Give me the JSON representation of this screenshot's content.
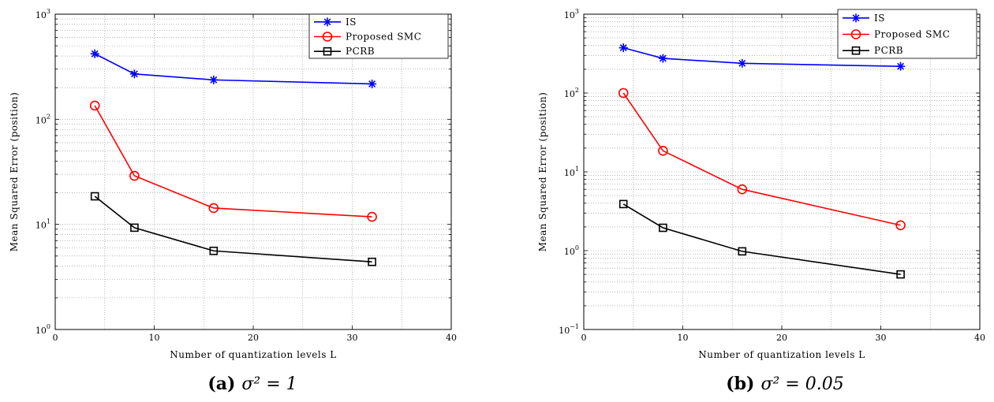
{
  "chart_data": [
    {
      "type": "line",
      "caption_prefix": "(a)",
      "caption_text": "σ² = 1",
      "xlabel": "Number of quantization levels L",
      "ylabel": "Mean Squared Error (position)",
      "xlim": [
        0,
        40
      ],
      "ylim": [
        1,
        1000
      ],
      "yscale": "log",
      "xticks": [
        0,
        10,
        20,
        30,
        40
      ],
      "yticks": [
        {
          "base": "10",
          "exp": "0"
        },
        {
          "base": "10",
          "exp": "1"
        },
        {
          "base": "10",
          "exp": "2"
        },
        {
          "base": "10",
          "exp": "3"
        }
      ],
      "grid": true,
      "legend_position": "top-right",
      "x": [
        4,
        8,
        16,
        32
      ],
      "series": [
        {
          "name": "IS",
          "color": "#0000ff",
          "marker": "asterisk",
          "values": [
            420,
            270,
            237,
            217
          ]
        },
        {
          "name": "Proposed SMC",
          "color": "#ff0000",
          "marker": "circle",
          "values": [
            135,
            29,
            14.3,
            11.8
          ]
        },
        {
          "name": "PCRB",
          "color": "#000000",
          "marker": "square",
          "values": [
            18.5,
            9.3,
            5.6,
            4.4
          ]
        }
      ]
    },
    {
      "type": "line",
      "caption_prefix": "(b)",
      "caption_text": "σ² = 0.05",
      "xlabel": "Number of quantization levels L",
      "ylabel": "Mean Squared Error (position)",
      "xlim": [
        0,
        40
      ],
      "ylim": [
        0.1,
        1000
      ],
      "yscale": "log",
      "xticks": [
        0,
        10,
        20,
        30,
        40
      ],
      "yticks": [
        {
          "base": "10",
          "exp": "−1"
        },
        {
          "base": "10",
          "exp": "0"
        },
        {
          "base": "10",
          "exp": "1"
        },
        {
          "base": "10",
          "exp": "2"
        },
        {
          "base": "10",
          "exp": "3"
        }
      ],
      "grid": true,
      "legend_position": "top-right",
      "x": [
        4,
        8,
        16,
        32
      ],
      "series": [
        {
          "name": "IS",
          "color": "#0000ff",
          "marker": "asterisk",
          "values": [
            375,
            275,
            238,
            218
          ]
        },
        {
          "name": "Proposed SMC",
          "color": "#ff0000",
          "marker": "circle",
          "values": [
            100,
            18.5,
            6.0,
            2.1
          ]
        },
        {
          "name": "PCRB",
          "color": "#000000",
          "marker": "square",
          "values": [
            3.9,
            1.95,
            0.98,
            0.5
          ]
        }
      ]
    }
  ]
}
